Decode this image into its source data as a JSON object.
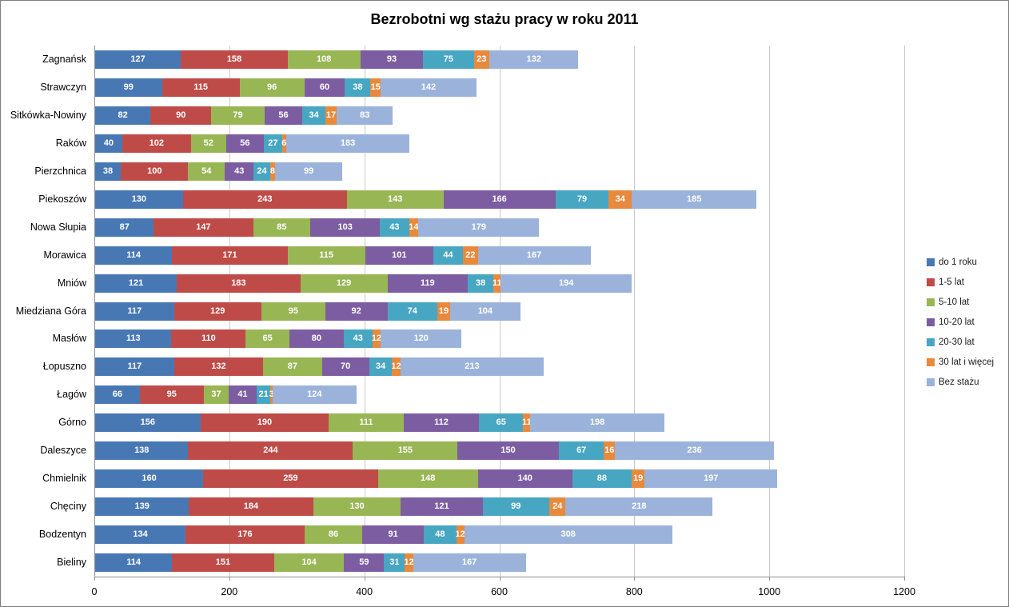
{
  "title": "Bezrobotni wg stażu pracy w roku 2011",
  "chart_data": {
    "type": "bar",
    "orientation": "horizontal",
    "stacked": true,
    "title": "Bezrobotni wg stażu pracy w roku 2011",
    "grid": true,
    "legend_position": "right",
    "data_label_color": "#FFFFFF",
    "xlim": [
      0,
      1200
    ],
    "x_ticks": [
      0,
      200,
      400,
      600,
      800,
      1000,
      1200
    ],
    "categories": [
      "Zagnańsk",
      "Strawczyn",
      "Sitkówka-Nowiny",
      "Raków",
      "Pierzchnica",
      "Piekoszów",
      "Nowa Słupia",
      "Morawica",
      "Mniów",
      "Miedziana Góra",
      "Masłów",
      "Łopuszno",
      "Łagów",
      "Górno",
      "Daleszyce",
      "Chmielnik",
      "Chęciny",
      "Bodzentyn",
      "Bieliny"
    ],
    "series": [
      {
        "name": "do 1 roku",
        "color": "#4878B4",
        "values": [
          127,
          99,
          82,
          40,
          38,
          130,
          87,
          114,
          121,
          117,
          113,
          117,
          66,
          156,
          138,
          160,
          139,
          134,
          114
        ]
      },
      {
        "name": "1-5 lat",
        "color": "#BE4B48",
        "values": [
          158,
          115,
          90,
          102,
          100,
          243,
          147,
          171,
          183,
          129,
          110,
          132,
          95,
          190,
          244,
          259,
          184,
          176,
          151
        ]
      },
      {
        "name": "5-10 lat",
        "color": "#98B654",
        "values": [
          108,
          96,
          79,
          52,
          54,
          143,
          85,
          115,
          129,
          95,
          65,
          87,
          37,
          111,
          155,
          148,
          130,
          86,
          104
        ]
      },
      {
        "name": "10-20 lat",
        "color": "#7C5DA2",
        "values": [
          93,
          60,
          56,
          56,
          43,
          166,
          103,
          101,
          119,
          92,
          80,
          70,
          41,
          112,
          150,
          140,
          121,
          91,
          59
        ]
      },
      {
        "name": "20-30 lat",
        "color": "#47A6C2",
        "values": [
          75,
          38,
          34,
          27,
          24,
          79,
          43,
          44,
          38,
          74,
          43,
          34,
          21,
          65,
          67,
          88,
          99,
          48,
          31
        ]
      },
      {
        "name": "30 lat i więcej",
        "color": "#E8893C",
        "values": [
          23,
          15,
          17,
          6,
          8,
          34,
          14,
          22,
          11,
          19,
          12,
          12,
          3,
          11,
          16,
          19,
          24,
          12,
          12
        ]
      },
      {
        "name": "Bez stażu",
        "color": "#9BB3DA",
        "values": [
          132,
          142,
          83,
          183,
          99,
          185,
          179,
          167,
          194,
          104,
          120,
          213,
          124,
          198,
          236,
          197,
          218,
          308,
          167
        ]
      }
    ]
  }
}
